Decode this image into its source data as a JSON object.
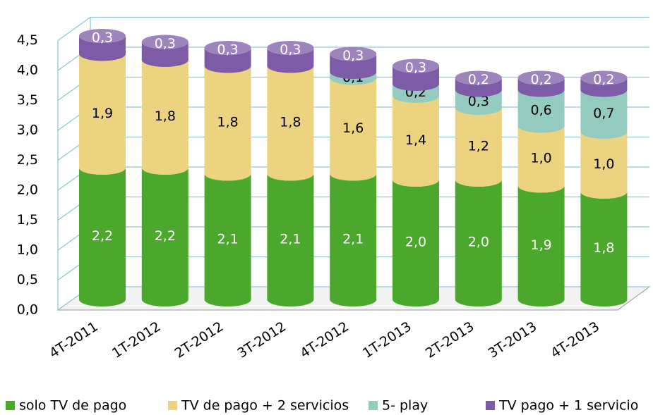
{
  "chart_data": {
    "type": "bar3d-stacked",
    "categories": [
      "4T-2011",
      "1T-2012",
      "2T-2012",
      "3T-2012",
      "4T-2012",
      "1T-2013",
      "2T-2013",
      "3T-2013",
      "4T-2013"
    ],
    "series": [
      {
        "name": "solo TV de pago",
        "color": "#4ca82c",
        "values": [
          2.2,
          2.2,
          2.1,
          2.1,
          2.1,
          2.0,
          2.0,
          1.9,
          1.8
        ],
        "value_labels": [
          "2,2",
          "2,2",
          "2,1",
          "2,1",
          "2,1",
          "2,0",
          "2,0",
          "1,9",
          "1,8"
        ]
      },
      {
        "name": "TV de pago + 2 servicios",
        "color": "#ecd37f",
        "values": [
          1.9,
          1.8,
          1.8,
          1.8,
          1.6,
          1.4,
          1.2,
          1.0,
          1.0
        ],
        "value_labels": [
          "1,9",
          "1,8",
          "1,8",
          "1,8",
          "1,6",
          "1,4",
          "1,2",
          "1,0",
          "1,0"
        ]
      },
      {
        "name": "5- play",
        "color": "#93cbbf",
        "values": [
          null,
          null,
          null,
          null,
          0.1,
          0.2,
          0.3,
          0.6,
          0.7
        ],
        "value_labels": [
          null,
          null,
          null,
          null,
          "0,1",
          "0,2",
          "0,3",
          "0,6",
          "0,7"
        ]
      },
      {
        "name": "TV pago + 1 servicio",
        "color": "#7d5ba6",
        "values": [
          0.3,
          0.3,
          0.3,
          0.3,
          0.3,
          0.3,
          0.2,
          0.2,
          0.2
        ],
        "value_labels": [
          "0,3",
          "0,3",
          "0,3",
          "0,3",
          "0,3",
          "0,3",
          "0,2",
          "0,2",
          "0,2"
        ]
      }
    ],
    "ylim": [
      0,
      4.5
    ],
    "yticks": [
      {
        "value": 0,
        "label": "0,0"
      },
      {
        "value": 0.5,
        "label": "0,5"
      },
      {
        "value": 1,
        "label": "1,0"
      },
      {
        "value": 1.5,
        "label": "1,5"
      },
      {
        "value": 2,
        "label": "2,0"
      },
      {
        "value": 2.5,
        "label": "2,5"
      },
      {
        "value": 3,
        "label": "3,0"
      },
      {
        "value": 3.5,
        "label": "3,5"
      },
      {
        "value": 4,
        "label": "4,0"
      },
      {
        "value": 4.5,
        "label": "4,5"
      }
    ],
    "grid": true,
    "legend": "bottom"
  }
}
